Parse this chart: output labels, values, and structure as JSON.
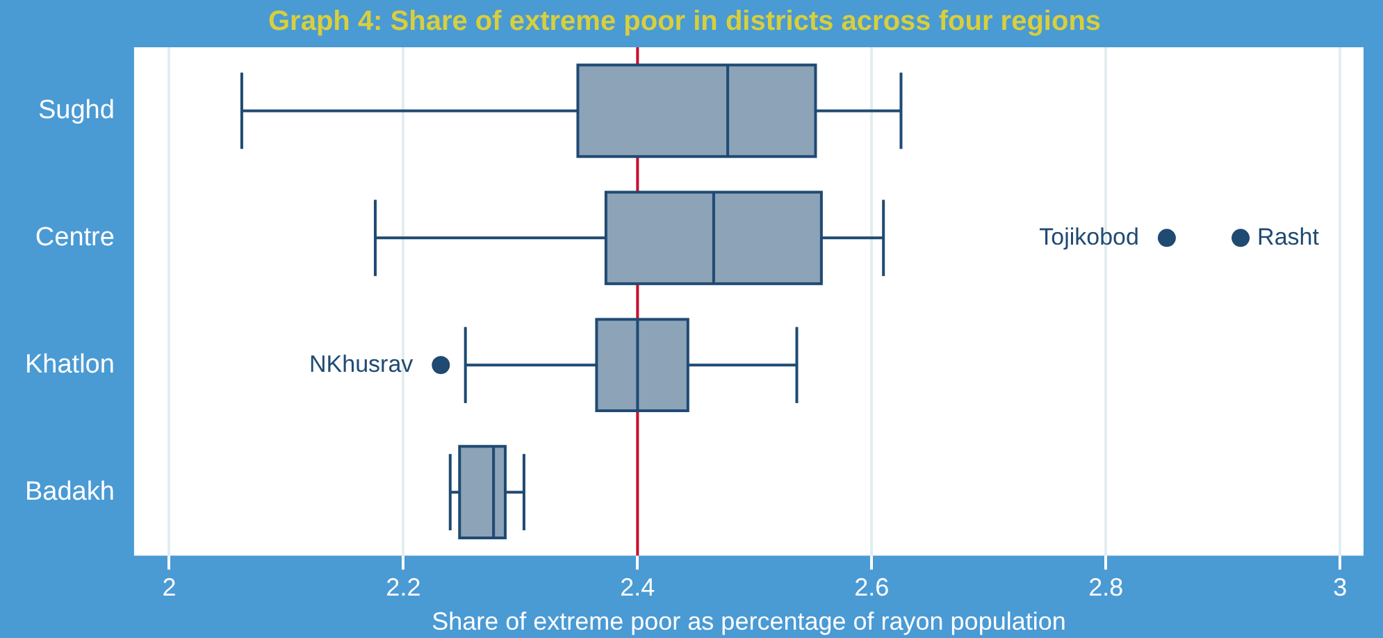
{
  "chart_data": {
    "type": "box",
    "title": "Graph 4: Share of extreme poor in districts across four regions",
    "xlabel": "Share of extreme poor as percentage of rayon population",
    "orientation": "horizontal",
    "categories": [
      "Sughd",
      "Centre",
      "Khatlon",
      "Badakh"
    ],
    "series": [
      {
        "color": "#8ca3b8",
        "boxes": [
          {
            "low": 2.062,
            "q1": 2.349,
            "median": 2.477,
            "q3": 2.552,
            "high": 2.625
          },
          {
            "low": 2.176,
            "q1": 2.373,
            "median": 2.465,
            "q3": 2.557,
            "high": 2.61,
            "outliers": [
              2.852,
              2.915
            ]
          },
          {
            "low": 2.253,
            "q1": 2.365,
            "median": 2.4,
            "q3": 2.443,
            "high": 2.536,
            "outliers": [
              2.232
            ]
          },
          {
            "low": 2.24,
            "q1": 2.248,
            "median": 2.277,
            "q3": 2.287,
            "high": 2.303
          }
        ]
      }
    ],
    "xlim": [
      1.97,
      3.02
    ],
    "xticks": [
      2,
      2.2,
      2.4,
      2.6,
      2.8,
      3
    ],
    "grid": "x",
    "legend": false,
    "ref_lines": [
      {
        "axis": "x",
        "value": 2.4,
        "color": "#c8102e"
      }
    ],
    "annotations": [
      "Tojikobod",
      "Rasht",
      "NKhusrav"
    ]
  }
}
